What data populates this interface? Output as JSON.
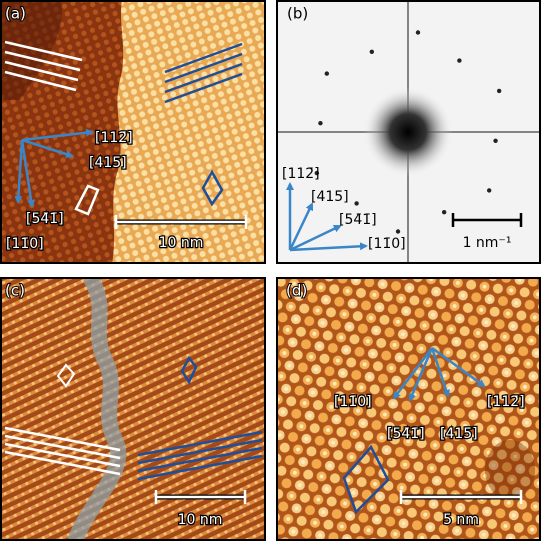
{
  "panels": [
    {
      "label": "(a)",
      "directions": [
        "[112̄]",
        "[415̄]",
        "[54̄1̄]",
        "[11̄0]"
      ],
      "scale_bar": "10 nm"
    },
    {
      "label": "(b)",
      "directions": [
        "[112̄]",
        "[415̄]",
        "[54̄1̄]",
        "[11̄0]"
      ],
      "scale_bar": "1 nm⁻¹"
    },
    {
      "label": "(c)",
      "scale_bar": "10 nm"
    },
    {
      "label": "(d)",
      "directions": [
        "[11̄0]",
        "[112̄]",
        "[54̄1̄]",
        "[415̄]"
      ],
      "scale_bar": "5 nm"
    }
  ]
}
